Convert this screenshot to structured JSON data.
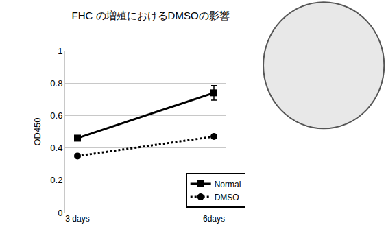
{
  "chart_data": {
    "type": "line",
    "title": "FHC の増殖におけるDMSOの影響",
    "y_label": "OD450",
    "categories": [
      "3 days",
      "6days"
    ],
    "series": [
      {
        "name": "Normal",
        "color": "#000000",
        "marker": "square",
        "line_style": "solid",
        "values": [
          0.46,
          0.74
        ],
        "error": [
          0.01,
          0.045
        ]
      },
      {
        "name": "DMSO",
        "color": "#000000",
        "marker": "circle",
        "line_style": "dot",
        "values": [
          0.35,
          0.47
        ],
        "error": [
          0.008,
          0.01
        ]
      }
    ],
    "ylim": [
      0,
      1
    ],
    "yticks": [
      0,
      0.2,
      0.4,
      0.6,
      0.8,
      1
    ],
    "grid": true,
    "legend": "bottom right"
  }
}
